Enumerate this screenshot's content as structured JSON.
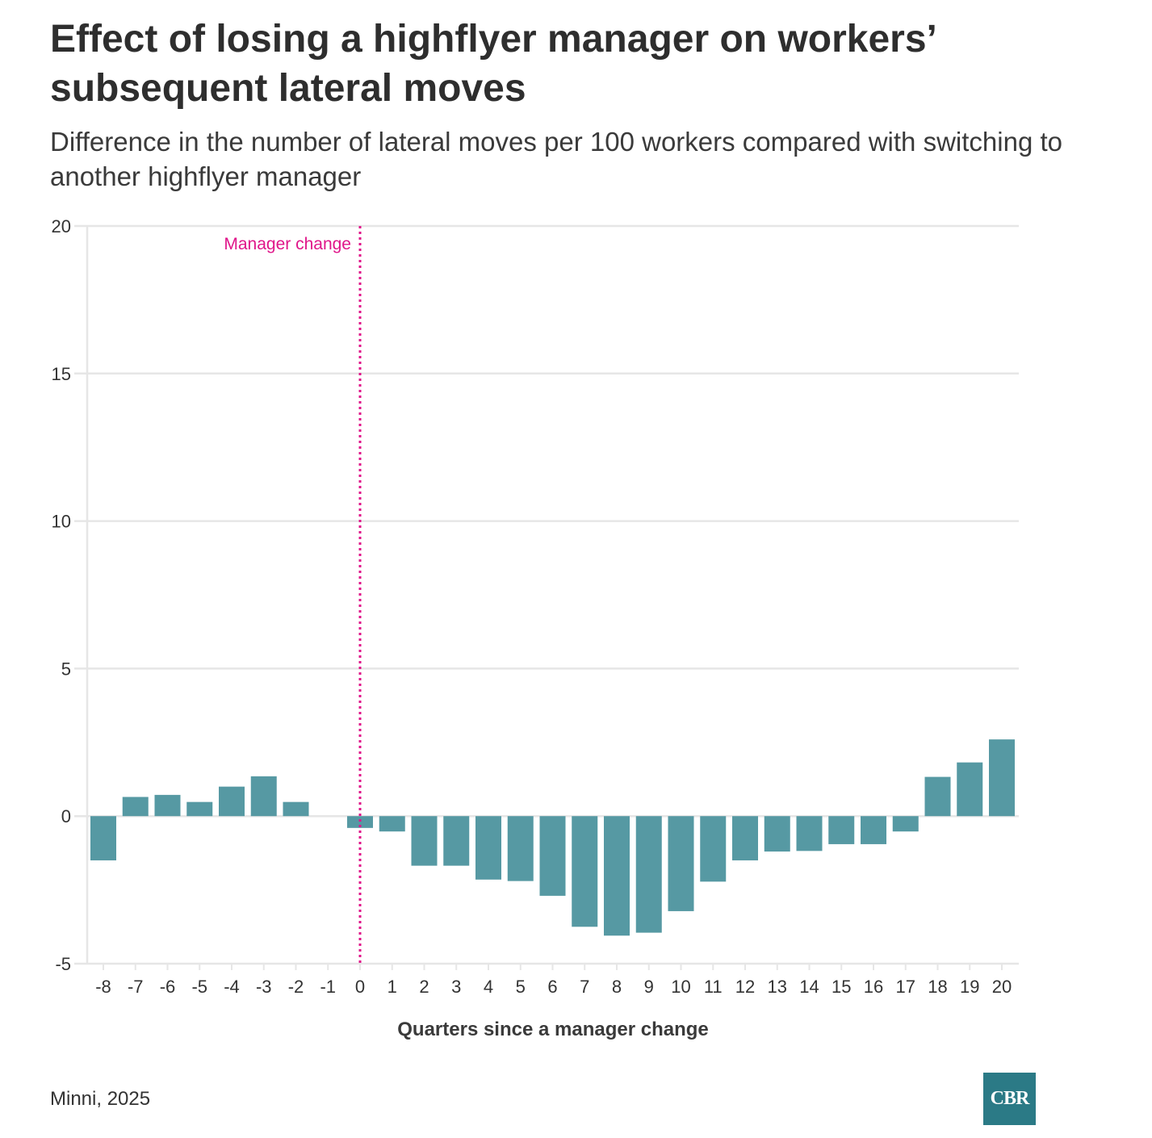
{
  "header": {
    "title": "Effect of losing a highflyer manager on workers’ subsequent lateral moves",
    "subtitle": "Difference in the number of lateral moves per 100 workers compared with switching to another highflyer manager"
  },
  "footer": {
    "source": "Minni, 2025",
    "logo_text": "CBR"
  },
  "colors": {
    "bar": "#5699a3",
    "annotation": "#e0168a",
    "grid": "#e6e6e6",
    "logo_bg": "#2b7a86"
  },
  "chart_data": {
    "type": "bar",
    "title": "Effect of losing a highflyer manager on workers’ subsequent lateral moves",
    "xlabel": "Quarters since a manager change",
    "ylabel": "",
    "ylim": [
      -5,
      20
    ],
    "yticks": [
      -5,
      0,
      5,
      10,
      15,
      20
    ],
    "grid": true,
    "categories": [
      "-8",
      "-7",
      "-6",
      "-5",
      "-4",
      "-3",
      "-2",
      "-1",
      "0",
      "1",
      "2",
      "3",
      "4",
      "5",
      "6",
      "7",
      "8",
      "9",
      "10",
      "11",
      "12",
      "13",
      "14",
      "15",
      "16",
      "17",
      "18",
      "19",
      "20"
    ],
    "values": [
      -1.5,
      0.65,
      0.72,
      0.48,
      1.0,
      1.35,
      0.48,
      null,
      -0.4,
      -0.52,
      -1.68,
      -1.68,
      -2.15,
      -2.2,
      -2.7,
      -3.75,
      -4.05,
      -3.95,
      -3.22,
      -2.22,
      -1.5,
      -1.2,
      -1.18,
      -0.95,
      -0.95,
      -0.52,
      1.33,
      1.82,
      2.6
    ],
    "annotation": {
      "label": "Manager change",
      "x": "0"
    }
  }
}
